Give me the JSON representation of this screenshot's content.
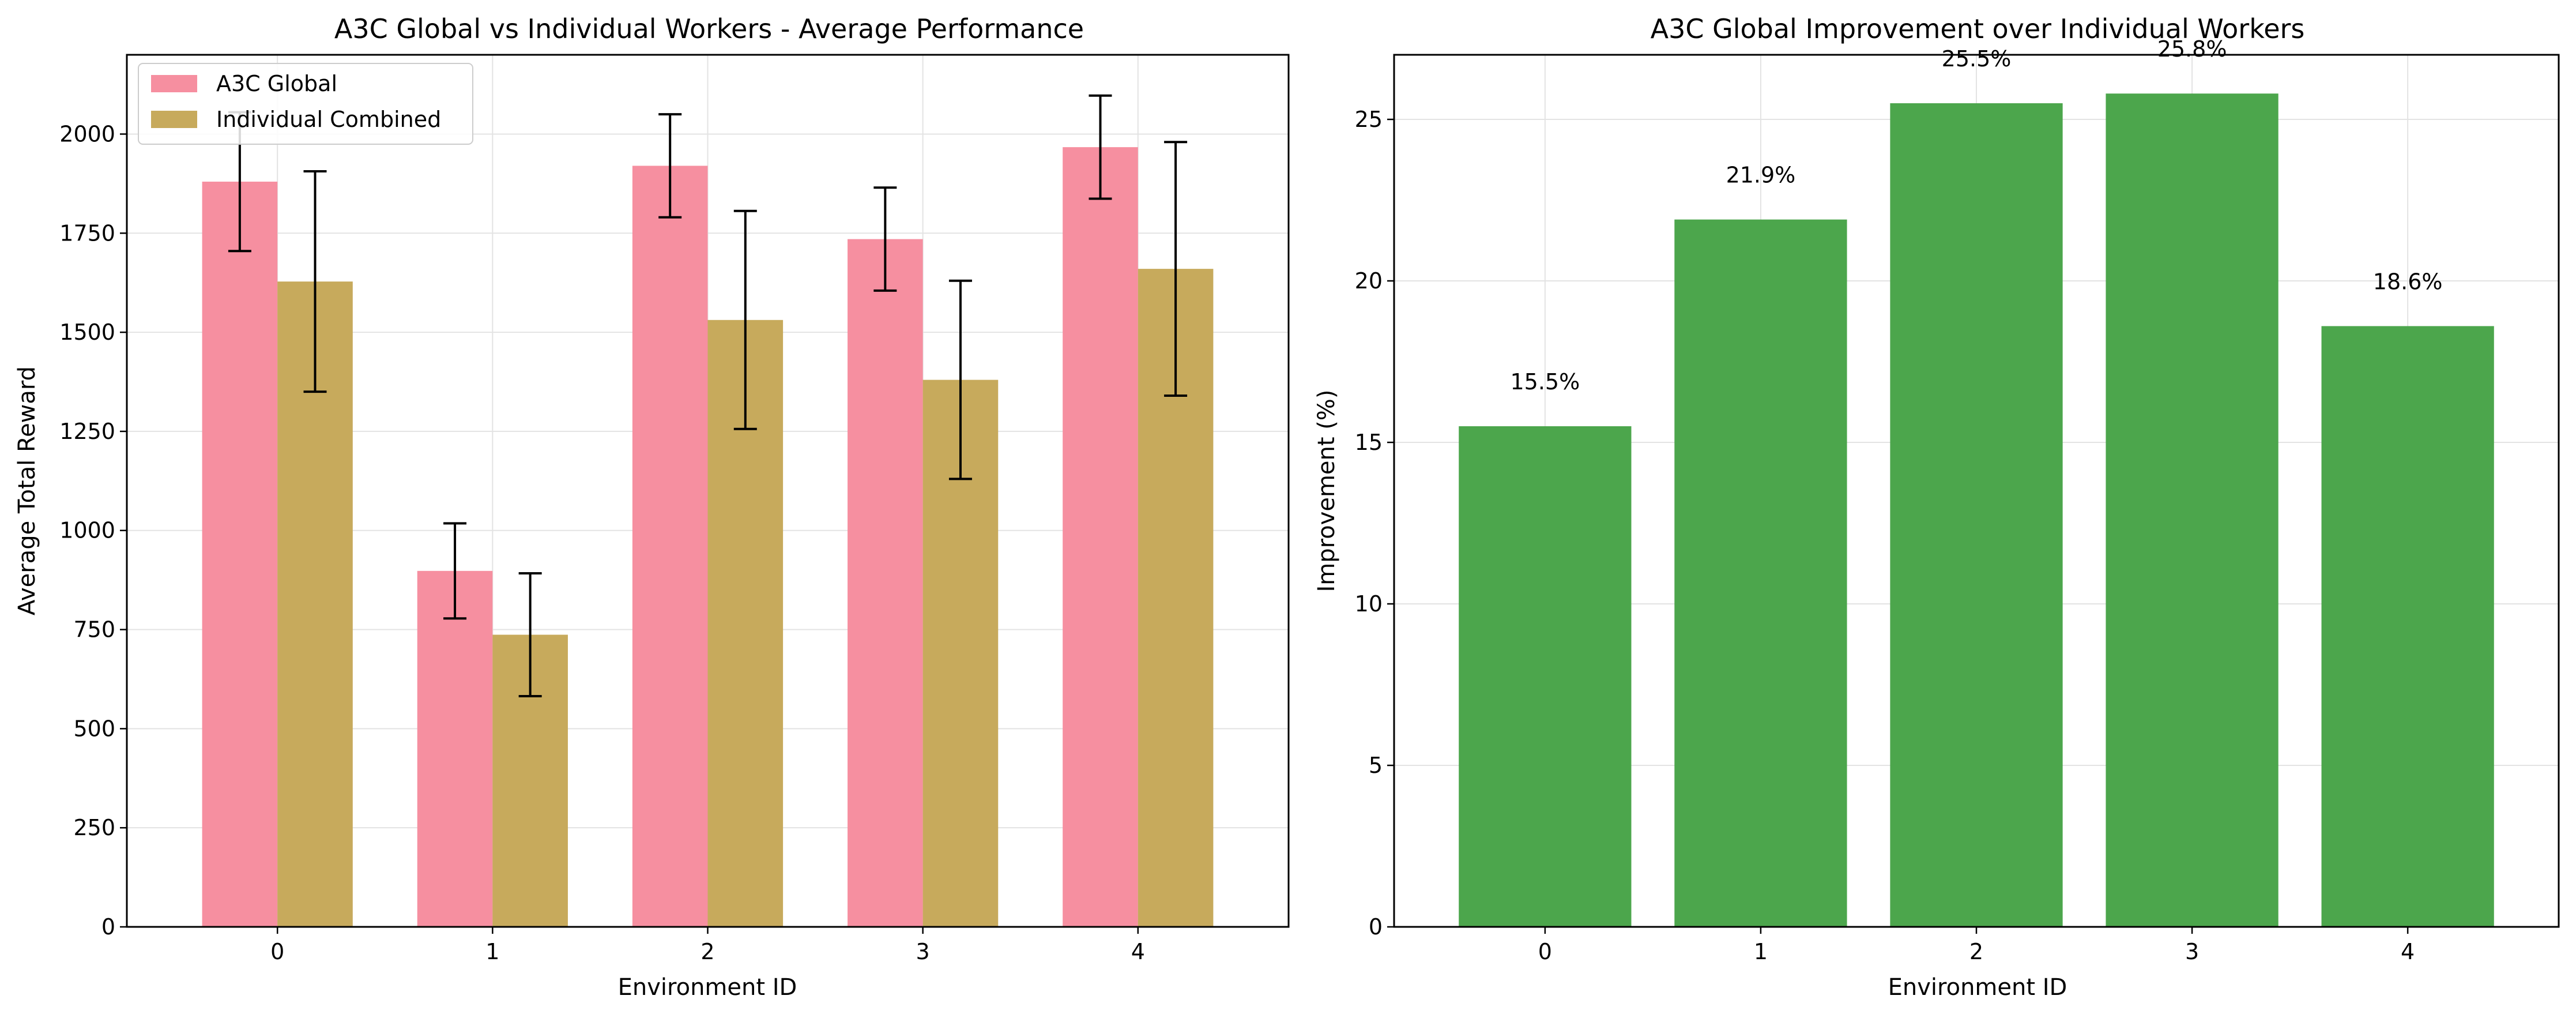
{
  "chart_data": [
    {
      "type": "bar",
      "title": "A3C Global vs Individual Workers - Average Performance",
      "xlabel": "Environment ID",
      "ylabel": "Average Total Reward",
      "categories": [
        "0",
        "1",
        "2",
        "3",
        "4"
      ],
      "ylim": [
        0,
        2200
      ],
      "yticks": [
        0,
        250,
        500,
        750,
        1000,
        1250,
        1500,
        1750,
        2000
      ],
      "grid": true,
      "legend": "top-left",
      "series": [
        {
          "name": "A3C Global",
          "color": "#f68fa0",
          "values": [
            1880,
            898,
            1920,
            1735,
            1967
          ],
          "errors": [
            175,
            120,
            130,
            130,
            130
          ]
        },
        {
          "name": "Individual Combined",
          "color": "#c7aa5c",
          "values": [
            1628,
            737,
            1531,
            1380,
            1660
          ],
          "errors": [
            278,
            155,
            275,
            250,
            320
          ]
        }
      ]
    },
    {
      "type": "bar",
      "title": "A3C Global Improvement over Individual Workers",
      "xlabel": "Environment ID",
      "ylabel": "Improvement (%)",
      "categories": [
        "0",
        "1",
        "2",
        "3",
        "4"
      ],
      "ylim": [
        0,
        27
      ],
      "yticks": [
        0,
        5,
        10,
        15,
        20,
        25
      ],
      "grid": true,
      "color": "#4ca64c",
      "values": [
        15.5,
        21.9,
        25.5,
        25.8,
        18.6
      ],
      "labels": [
        "15.5%",
        "21.9%",
        "25.5%",
        "25.8%",
        "18.6%"
      ]
    }
  ]
}
